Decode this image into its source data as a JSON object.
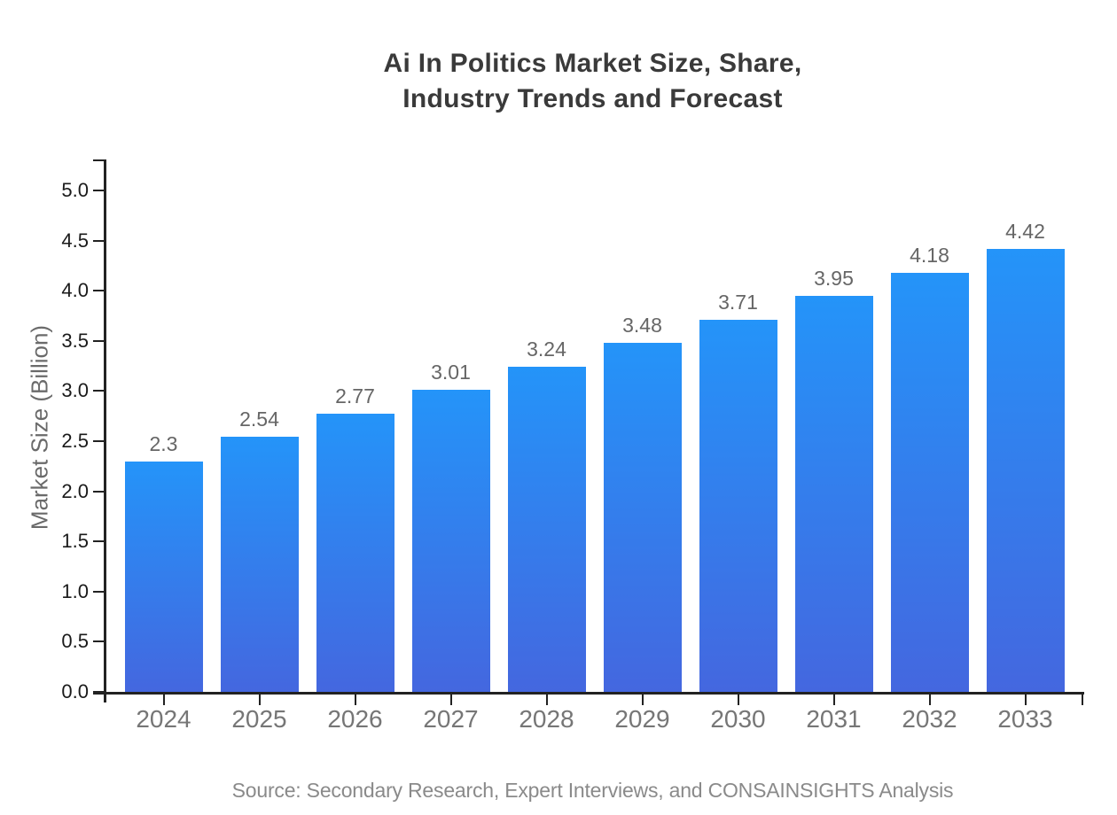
{
  "chart_data": {
    "type": "bar",
    "title": "Ai In Politics Market Size, Share,\nIndustry Trends and Forecast",
    "xlabel": "",
    "ylabel": "Market Size (Billion)",
    "categories": [
      "2024",
      "2025",
      "2026",
      "2027",
      "2028",
      "2029",
      "2030",
      "2031",
      "2032",
      "2033"
    ],
    "values": [
      2.3,
      2.54,
      2.77,
      3.01,
      3.24,
      3.48,
      3.71,
      3.95,
      4.18,
      4.42
    ],
    "data_labels": [
      "2.3",
      "2.54",
      "2.77",
      "3.01",
      "3.24",
      "3.48",
      "3.71",
      "3.95",
      "4.18",
      "4.42"
    ],
    "ylim": [
      0,
      5.0
    ],
    "ytick_labels": [
      "0.0",
      "0.5",
      "1.0",
      "1.5",
      "2.0",
      "2.5",
      "3.0",
      "3.5",
      "4.0",
      "4.5",
      "5.0"
    ],
    "grid": false,
    "legend": "none",
    "colors": {
      "bar_gradient_top": "#2494f9",
      "bar_gradient_bottom": "#4467df",
      "title": "#3a3a3a",
      "axis_line": "#222222",
      "ytick_text": "#1a1a1a",
      "xtick_text": "#767676",
      "bar_label_text": "#666666",
      "source_text": "#8a8a8a"
    },
    "source": "Source: Secondary Research, Expert Interviews, and CONSAINSIGHTS Analysis"
  }
}
